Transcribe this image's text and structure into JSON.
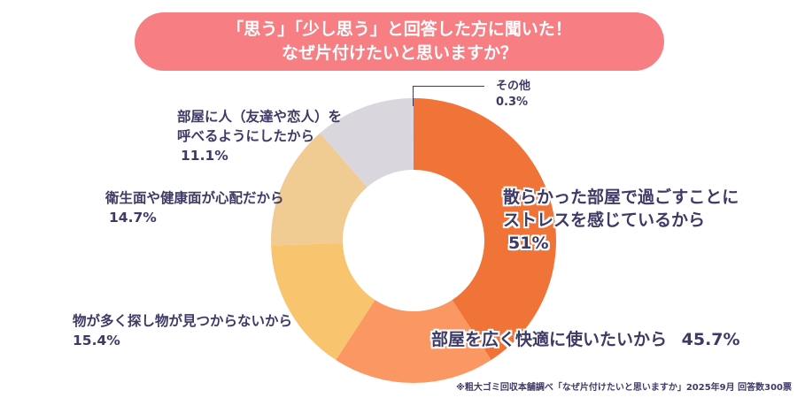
{
  "title": {
    "line1": "「思う」「少し思う」と回答した方に聞いた！",
    "line2": "なぜ片付けたいと思いますか？"
  },
  "chart_data": {
    "type": "pie",
    "subtype": "donut",
    "title": "「思う」「少し思う」と回答した方に聞いた！ なぜ片付けたいと思いますか？",
    "categories": [
      "散らかった部屋で過ごすことにストレスを感じているから",
      "部屋を広く快適に使いたいから",
      "物が多く探し物が見つからないから",
      "衛生面や健康面が心配だから",
      "部屋に人（友達や恋人）を呼べるようにしたから",
      "その他"
    ],
    "values": [
      51,
      45.7,
      15.4,
      14.7,
      11.1,
      0.3
    ],
    "unit": "%",
    "colors": [
      "#f07438",
      "#fb9763",
      "#f8c46e",
      "#f0cb92",
      "#dad6dd",
      "#dad6dd"
    ],
    "legend": "none (direct labels)"
  },
  "labels": {
    "stress": {
      "line1": "散らかった部屋で過ごすことに",
      "line2": "ストレスを感じているから",
      "value": "51%"
    },
    "spacious": {
      "text": "部屋を広く快適に使いたいから",
      "value": "45.7%"
    },
    "search": {
      "line1": "物が多く探し物が見つからないから",
      "value": "15.4%"
    },
    "hygiene": {
      "line1": "衛生面や健康面が心配だから",
      "value": "14.7%"
    },
    "guests": {
      "line1": "部屋に人（友達や恋人）を",
      "line2": "呼べるようにしたから",
      "value": "11.1%"
    },
    "other": {
      "line1": "その他",
      "value": "0.3%"
    }
  },
  "footer": "※粗大ゴミ回収本舗調べ「なぜ片付けたいと思いますか」2025年9月 回答数300票"
}
